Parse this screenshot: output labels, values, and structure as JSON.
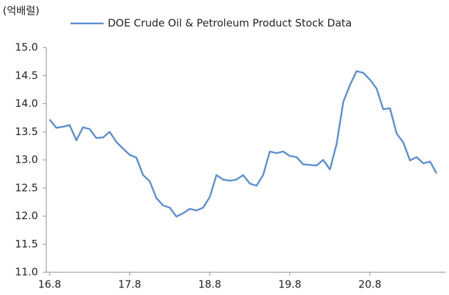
{
  "chart_data": {
    "type": "line",
    "unit_label": "(억배럴)",
    "categories": [
      "16.8",
      null,
      null,
      null,
      null,
      null,
      null,
      null,
      null,
      null,
      null,
      null,
      "17.8",
      null,
      null,
      null,
      null,
      null,
      null,
      null,
      null,
      null,
      null,
      null,
      "18.8",
      null,
      null,
      null,
      null,
      null,
      null,
      null,
      null,
      null,
      null,
      null,
      "19.8",
      null,
      null,
      null,
      null,
      null,
      null,
      null,
      null,
      null,
      null,
      null,
      "20.8",
      null,
      null,
      null,
      null,
      null,
      null,
      null,
      null,
      null,
      null
    ],
    "series": [
      {
        "name": "DOE Crude Oil & Petroleum Product Stock Data",
        "color": "#5b8fd4",
        "values": [
          13.72,
          13.57,
          13.59,
          13.62,
          13.35,
          13.58,
          13.55,
          13.39,
          13.4,
          13.5,
          13.32,
          13.2,
          13.09,
          13.04,
          12.73,
          12.62,
          12.32,
          12.19,
          12.15,
          11.99,
          12.05,
          12.13,
          12.1,
          12.15,
          12.34,
          12.73,
          12.65,
          12.63,
          12.65,
          12.73,
          12.58,
          12.54,
          12.73,
          13.15,
          13.12,
          13.15,
          13.07,
          13.05,
          12.92,
          12.91,
          12.9,
          13.0,
          12.83,
          13.28,
          14.03,
          14.33,
          14.58,
          14.55,
          14.43,
          14.27,
          13.9,
          13.92,
          13.47,
          13.31,
          12.99,
          13.05,
          12.94,
          12.97,
          12.76
        ]
      }
    ],
    "ylim": [
      11,
      15
    ],
    "yticks": [
      {
        "value": 11,
        "label": "11.0"
      },
      {
        "value": 11.5,
        "label": "11.5"
      },
      {
        "value": 12,
        "label": "12.0"
      },
      {
        "value": 12.5,
        "label": "12.5"
      },
      {
        "value": 13,
        "label": "13.0"
      },
      {
        "value": 13.5,
        "label": "13.5"
      },
      {
        "value": 14,
        "label": "14.0"
      },
      {
        "value": 14.5,
        "label": "14.5"
      },
      {
        "value": 15,
        "label": "15.0"
      }
    ],
    "legend": "top"
  }
}
